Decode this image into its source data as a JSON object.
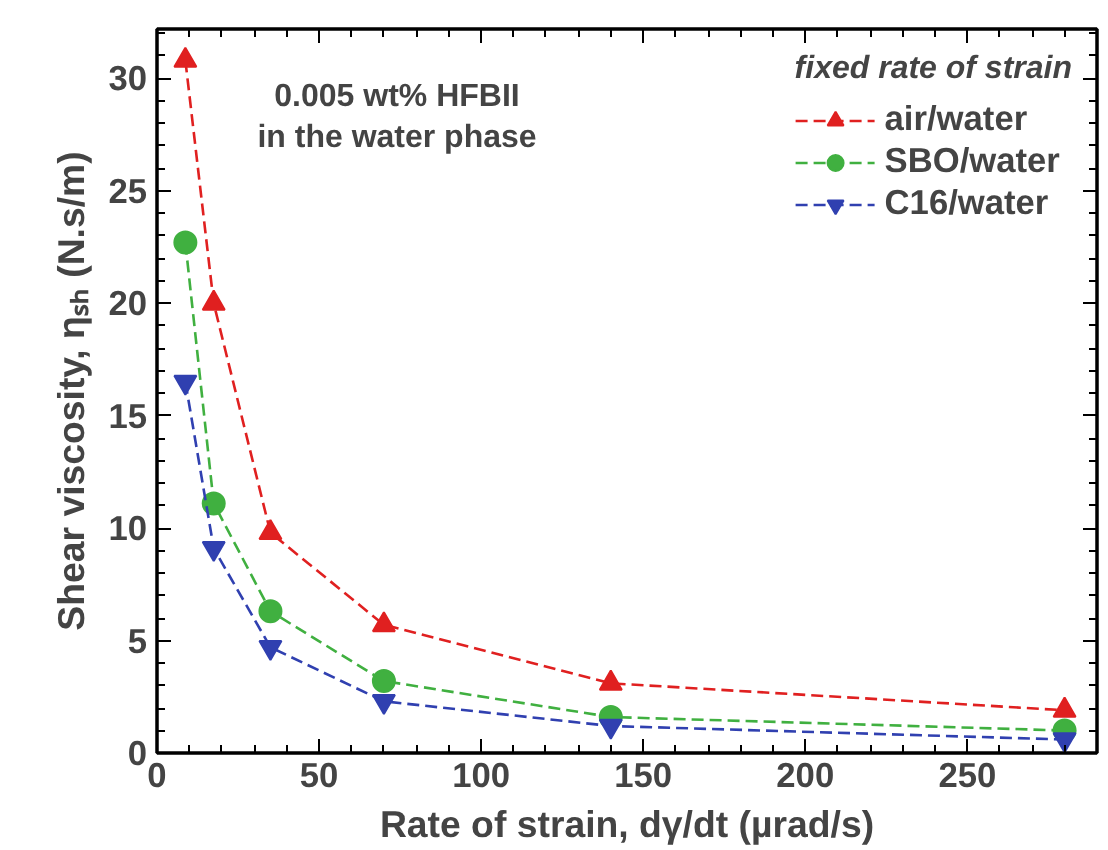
{
  "chart_data": {
    "type": "line",
    "xlabel": "Rate of strain, dγ/dt (µrad/s)",
    "ylabel": "Shear viscosity, ηₛₕ (N.s/m)",
    "legend_title": "fixed rate of strain",
    "legend": "top right",
    "line_style": "dashed",
    "grid": false,
    "annotations": [
      "0.005 wt% HFBII\nin the water phase"
    ],
    "x": [
      8.75,
      17.5,
      35,
      70,
      140,
      280
    ],
    "xlim": [
      0,
      290
    ],
    "xticks": [
      0,
      50,
      100,
      150,
      200,
      250
    ],
    "ylim": [
      0,
      32.2
    ],
    "yticks": [
      0,
      5,
      10,
      15,
      20,
      25,
      30
    ],
    "series": [
      {
        "name": "air/water",
        "color": "#e02020",
        "marker": "triangle",
        "values": [
          30.8,
          20.0,
          9.8,
          5.7,
          3.1,
          1.9
        ]
      },
      {
        "name": "SBO/water",
        "color": "#40b040",
        "marker": "circle",
        "values": [
          22.7,
          11.1,
          6.3,
          3.2,
          1.6,
          1.0
        ]
      },
      {
        "name": "C16/water",
        "color": "#3040b0",
        "marker": "triangle",
        "values": [
          16.5,
          9.1,
          4.7,
          2.3,
          1.2,
          0.6
        ]
      }
    ]
  }
}
